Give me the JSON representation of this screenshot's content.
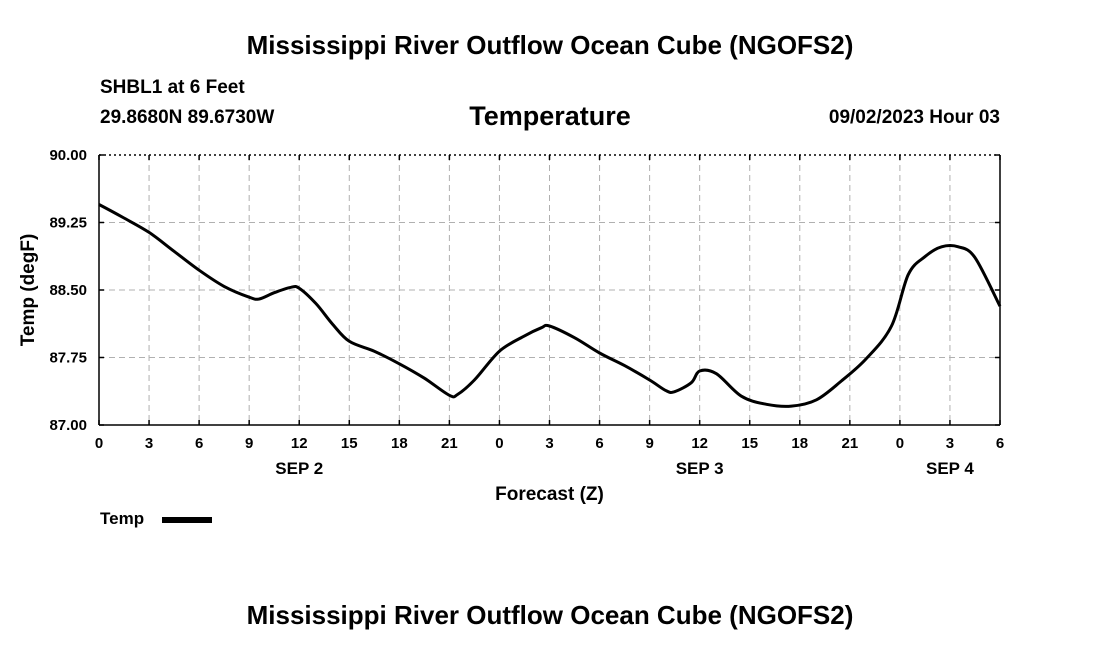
{
  "header": {
    "title_top": "Mississippi River Outflow Ocean Cube (NGOFS2)",
    "title_bottom": "Mississippi River Outflow Ocean Cube (NGOFS2)",
    "station": "SHBL1 at 6 Feet",
    "coords": "29.8680N  89.6730W",
    "datetime": "09/02/2023 Hour 03"
  },
  "chart_data": {
    "type": "line",
    "title": "Temperature",
    "xlabel": "Forecast (Z)",
    "ylabel": "Temp (degF)",
    "ylim": [
      87.0,
      90.0
    ],
    "xlim": [
      0,
      54
    ],
    "yticks": [
      "87.00",
      "87.75",
      "88.50",
      "89.25",
      "90.00"
    ],
    "ytick_values": [
      87.0,
      87.75,
      88.5,
      89.25,
      90.0
    ],
    "xtick_values": [
      0,
      3,
      6,
      9,
      12,
      15,
      18,
      21,
      24,
      27,
      30,
      33,
      36,
      39,
      42,
      45,
      48,
      51,
      54
    ],
    "xtick_labels": [
      "0",
      "3",
      "6",
      "9",
      "12",
      "15",
      "18",
      "21",
      "0",
      "3",
      "6",
      "9",
      "12",
      "15",
      "18",
      "21",
      "0",
      "3",
      "6"
    ],
    "day_labels": [
      {
        "label": "SEP 2",
        "x": 12
      },
      {
        "label": "SEP 3",
        "x": 36
      },
      {
        "label": "SEP 4",
        "x": 51
      }
    ],
    "grid": true,
    "series": [
      {
        "name": "Temp",
        "color": "#000000",
        "x": [
          0,
          1.5,
          3,
          4.5,
          6,
          7.5,
          9,
          9.6,
          10.5,
          11.5,
          12,
          13,
          14,
          15,
          16.5,
          18,
          19.5,
          21,
          21.5,
          22.5,
          24,
          25.5,
          26.5,
          27,
          28.5,
          30,
          31.5,
          33,
          34,
          34.5,
          35.5,
          36,
          37,
          38.5,
          40,
          41.5,
          43,
          44.5,
          46,
          47.5,
          48.5,
          49.5,
          50.5,
          51.5,
          52.5,
          54
        ],
        "values": [
          89.45,
          89.3,
          89.14,
          88.93,
          88.72,
          88.54,
          88.42,
          88.4,
          88.47,
          88.53,
          88.52,
          88.35,
          88.12,
          87.93,
          87.82,
          87.68,
          87.52,
          87.33,
          87.34,
          87.5,
          87.82,
          87.99,
          88.08,
          88.1,
          87.97,
          87.8,
          87.66,
          87.5,
          87.38,
          87.37,
          87.47,
          87.6,
          87.57,
          87.32,
          87.23,
          87.21,
          87.28,
          87.49,
          87.74,
          88.1,
          88.67,
          88.87,
          88.98,
          88.98,
          88.86,
          88.32
        ]
      }
    ],
    "legend": "bottom-left"
  }
}
